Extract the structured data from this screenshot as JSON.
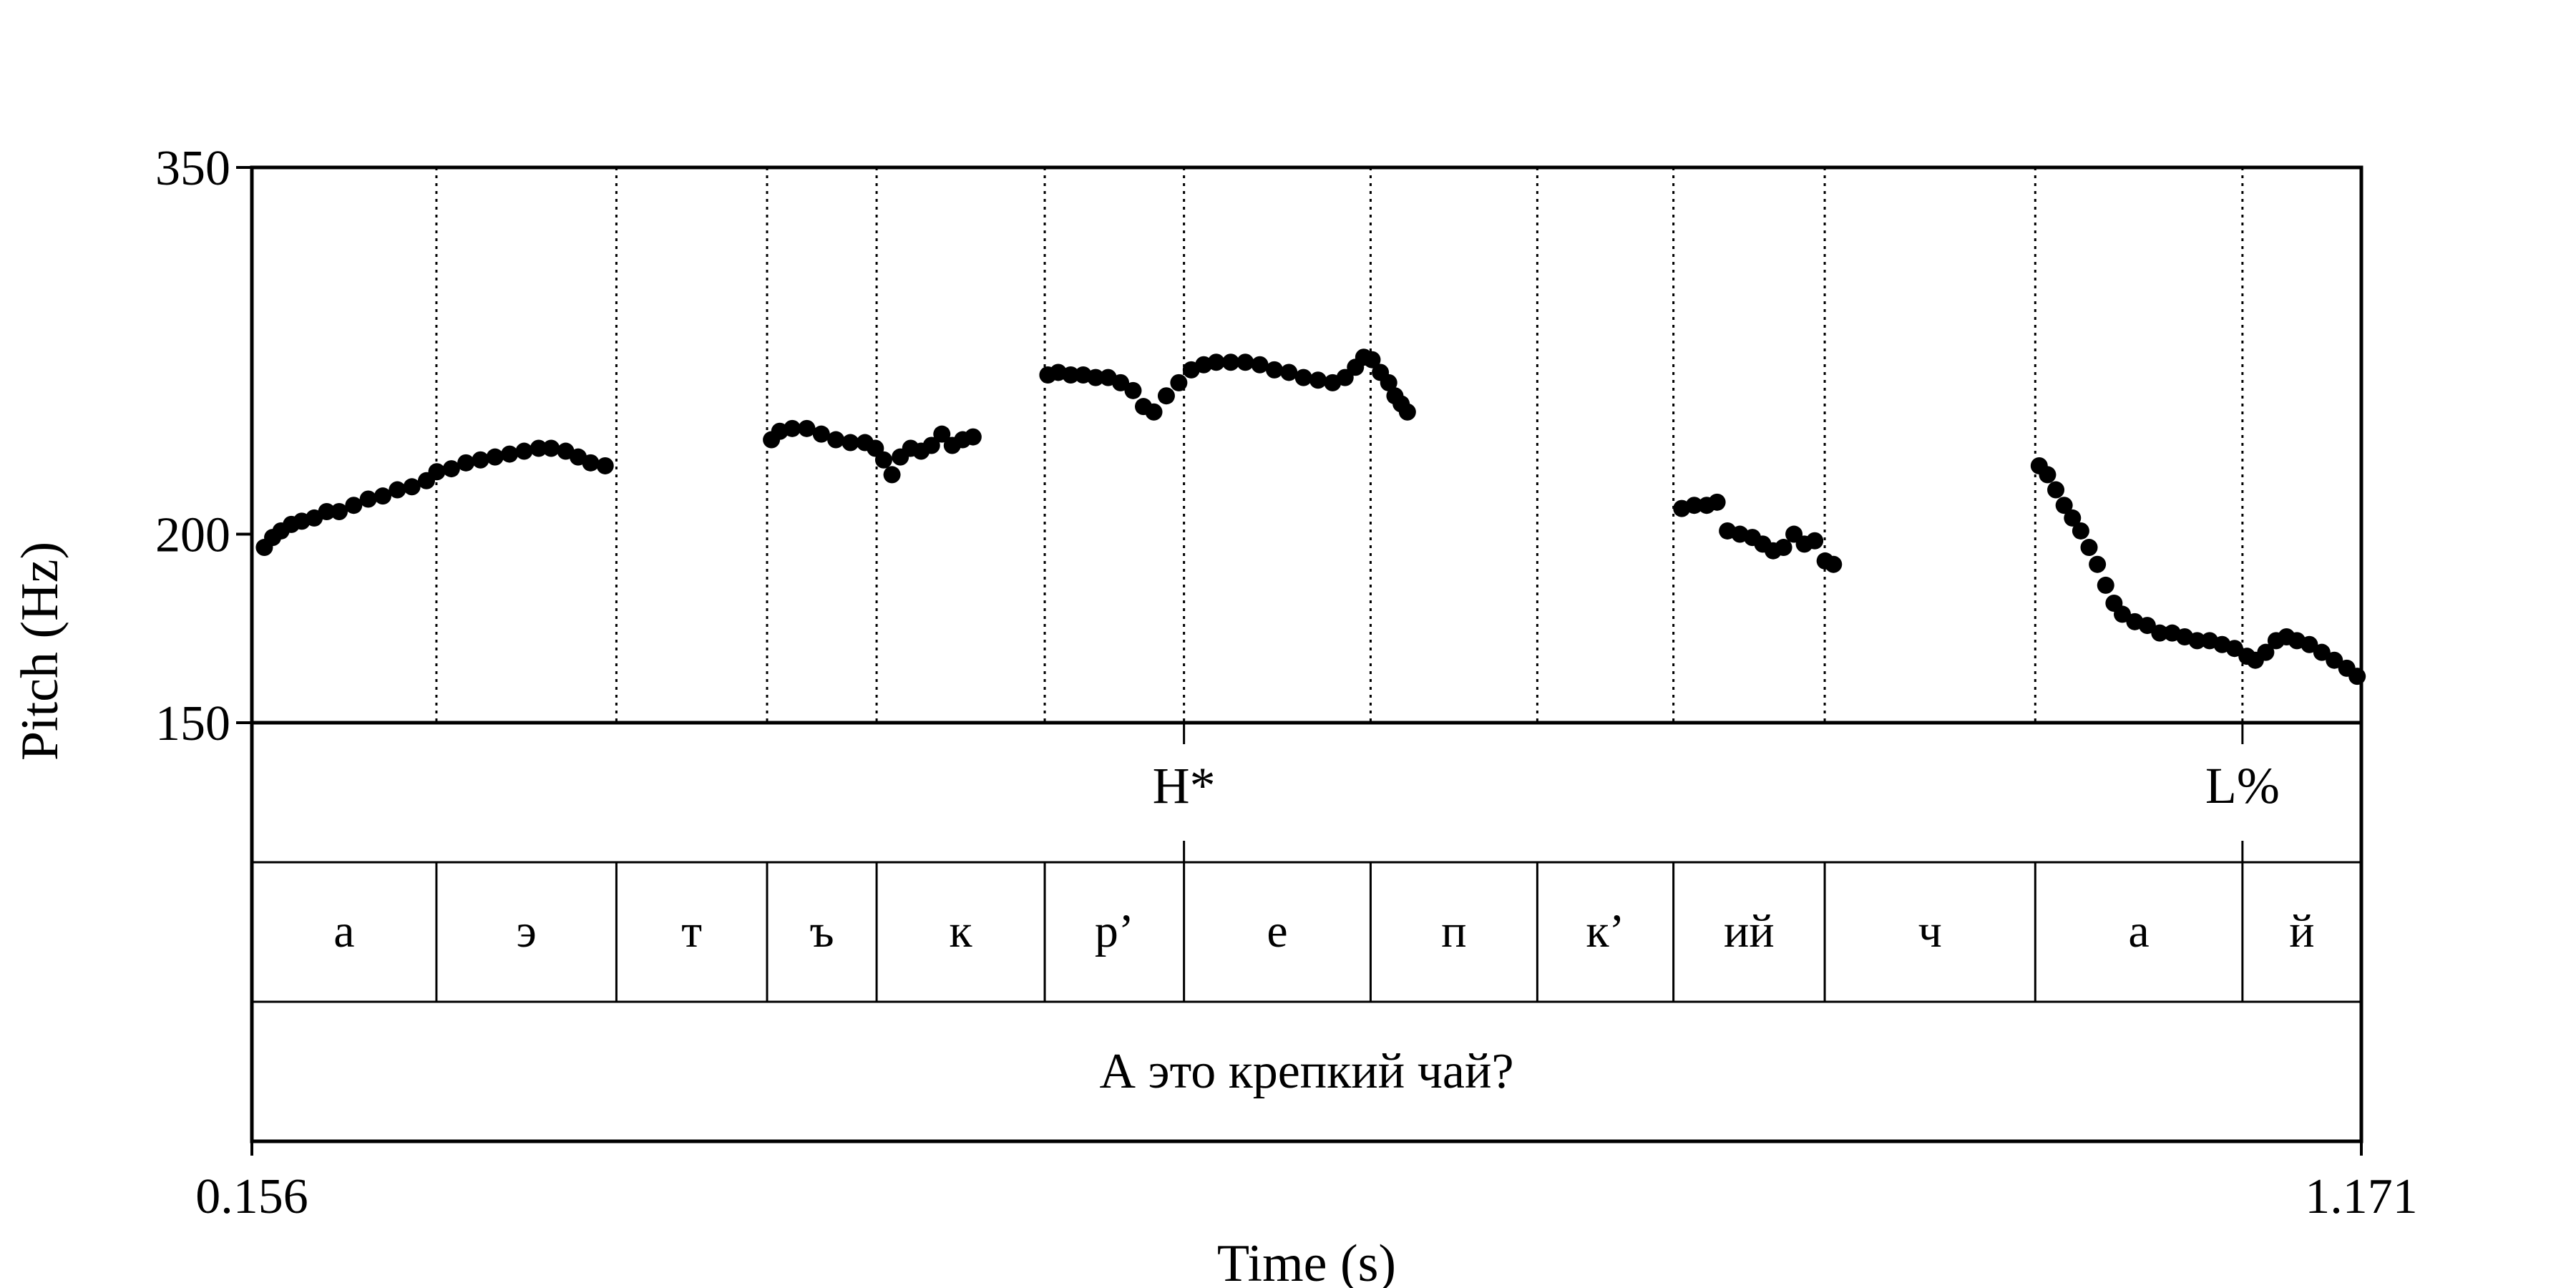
{
  "chart_data": {
    "type": "scatter",
    "title": "",
    "xlabel": "Time (s)",
    "ylabel": "Pitch (Hz)",
    "xlim": [
      0.156,
      1.171
    ],
    "ylim": [
      150,
      350
    ],
    "x_tick_labels": [
      "0.156",
      "1.171"
    ],
    "y_tick_labels": [
      "350",
      "200",
      "150"
    ],
    "y_ticks": [
      350,
      200,
      150
    ],
    "y_scale": "log",
    "grid": false,
    "boundaries_s": [
      0.2448,
      0.3314,
      0.4039,
      0.4566,
      0.5375,
      0.6045,
      0.6943,
      0.7745,
      0.84,
      0.9128,
      1.0141,
      1.1138
    ],
    "segments": [
      {
        "label": "а",
        "start": 0.156,
        "end": 0.2448
      },
      {
        "label": "э",
        "start": 0.2448,
        "end": 0.3314
      },
      {
        "label": "т",
        "start": 0.3314,
        "end": 0.4039
      },
      {
        "label": "ъ",
        "start": 0.4039,
        "end": 0.4566
      },
      {
        "label": "к",
        "start": 0.4566,
        "end": 0.5375
      },
      {
        "label": "р’",
        "start": 0.5375,
        "end": 0.6045
      },
      {
        "label": "е",
        "start": 0.6045,
        "end": 0.6943
      },
      {
        "label": "п",
        "start": 0.6943,
        "end": 0.7745
      },
      {
        "label": "к’",
        "start": 0.7745,
        "end": 0.84
      },
      {
        "label": "ий",
        "start": 0.84,
        "end": 0.9128
      },
      {
        "label": "ч",
        "start": 0.9128,
        "end": 1.0141
      },
      {
        "label": "а",
        "start": 1.0141,
        "end": 1.1138
      },
      {
        "label": "й",
        "start": 1.1138,
        "end": 1.171
      }
    ],
    "tones": [
      {
        "label": "H*",
        "time": 0.6045
      },
      {
        "label": "L%",
        "time": 1.1138
      }
    ],
    "sentence": "А это крепкий чай?",
    "series": [
      {
        "color": "#000000",
        "points": [
          [
            0.162,
            196
          ],
          [
            0.166,
            199
          ],
          [
            0.17,
            201
          ],
          [
            0.175,
            203
          ],
          [
            0.18,
            204
          ],
          [
            0.186,
            205
          ],
          [
            0.192,
            207
          ],
          [
            0.198,
            207
          ],
          [
            0.205,
            209
          ],
          [
            0.212,
            211
          ],
          [
            0.219,
            212
          ],
          [
            0.226,
            214
          ],
          [
            0.233,
            215
          ],
          [
            0.24,
            217
          ],
          [
            0.245,
            220
          ],
          [
            0.252,
            221
          ],
          [
            0.259,
            223
          ],
          [
            0.266,
            224
          ],
          [
            0.273,
            225
          ],
          [
            0.28,
            226
          ],
          [
            0.287,
            227
          ],
          [
            0.294,
            228
          ],
          [
            0.3,
            228
          ],
          [
            0.307,
            227
          ],
          [
            0.313,
            225
          ],
          [
            0.319,
            223
          ],
          [
            0.326,
            222
          ],
          [
            0.406,
            231
          ],
          [
            0.41,
            234
          ],
          [
            0.416,
            235
          ],
          [
            0.423,
            235
          ],
          [
            0.43,
            233
          ],
          [
            0.437,
            231
          ],
          [
            0.444,
            230
          ],
          [
            0.451,
            230
          ],
          [
            0.456,
            228
          ],
          [
            0.46,
            224
          ],
          [
            0.464,
            219
          ],
          [
            0.468,
            225
          ],
          [
            0.473,
            228
          ],
          [
            0.478,
            227
          ],
          [
            0.483,
            229
          ],
          [
            0.488,
            233
          ],
          [
            0.493,
            229
          ],
          [
            0.498,
            231
          ],
          [
            0.503,
            232
          ],
          [
            0.539,
            255
          ],
          [
            0.544,
            256
          ],
          [
            0.55,
            255
          ],
          [
            0.556,
            255
          ],
          [
            0.562,
            254
          ],
          [
            0.568,
            254
          ],
          [
            0.574,
            252
          ],
          [
            0.58,
            249
          ],
          [
            0.585,
            243
          ],
          [
            0.59,
            241
          ],
          [
            0.596,
            247
          ],
          [
            0.602,
            252
          ],
          [
            0.608,
            257
          ],
          [
            0.614,
            259
          ],
          [
            0.62,
            260
          ],
          [
            0.627,
            260
          ],
          [
            0.634,
            260
          ],
          [
            0.641,
            259
          ],
          [
            0.648,
            257
          ],
          [
            0.655,
            256
          ],
          [
            0.662,
            254
          ],
          [
            0.669,
            253
          ],
          [
            0.676,
            252
          ],
          [
            0.682,
            254
          ],
          [
            0.687,
            258
          ],
          [
            0.691,
            262
          ],
          [
            0.695,
            261
          ],
          [
            0.699,
            256
          ],
          [
            0.703,
            252
          ],
          [
            0.706,
            247
          ],
          [
            0.709,
            244
          ],
          [
            0.712,
            241
          ],
          [
            0.844,
            208
          ],
          [
            0.85,
            209
          ],
          [
            0.856,
            209
          ],
          [
            0.861,
            210
          ],
          [
            0.866,
            201
          ],
          [
            0.872,
            200
          ],
          [
            0.878,
            199
          ],
          [
            0.883,
            197
          ],
          [
            0.888,
            195
          ],
          [
            0.893,
            196
          ],
          [
            0.898,
            200
          ],
          [
            0.903,
            197
          ],
          [
            0.908,
            198
          ],
          [
            0.913,
            192
          ],
          [
            0.917,
            191
          ],
          [
            1.016,
            222
          ],
          [
            1.02,
            219
          ],
          [
            1.024,
            214
          ],
          [
            1.028,
            209
          ],
          [
            1.032,
            205
          ],
          [
            1.036,
            201
          ],
          [
            1.04,
            196
          ],
          [
            1.044,
            191
          ],
          [
            1.048,
            185
          ],
          [
            1.052,
            180
          ],
          [
            1.056,
            177
          ],
          [
            1.062,
            175
          ],
          [
            1.068,
            174
          ],
          [
            1.074,
            172
          ],
          [
            1.08,
            172
          ],
          [
            1.086,
            171
          ],
          [
            1.092,
            170
          ],
          [
            1.098,
            170
          ],
          [
            1.104,
            169
          ],
          [
            1.11,
            168
          ],
          [
            1.116,
            166
          ],
          [
            1.12,
            165
          ],
          [
            1.125,
            167
          ],
          [
            1.13,
            170
          ],
          [
            1.135,
            171
          ],
          [
            1.14,
            170
          ],
          [
            1.146,
            169
          ],
          [
            1.152,
            167
          ],
          [
            1.158,
            165
          ],
          [
            1.164,
            163
          ],
          [
            1.169,
            161
          ]
        ]
      }
    ]
  }
}
